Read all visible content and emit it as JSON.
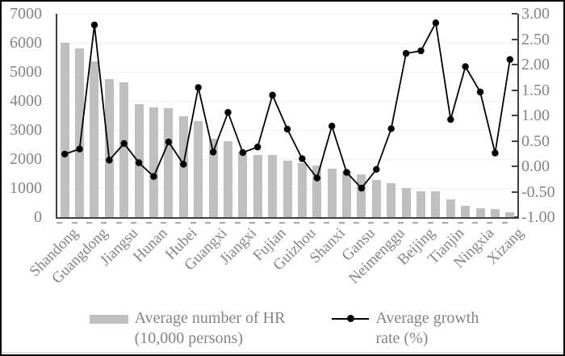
{
  "legend": {
    "bar_lines": [
      "Average number of HR",
      "(10,000 persons)"
    ],
    "line_lines": [
      "Average growth",
      "rate (%)"
    ]
  },
  "colors": {
    "bar": "#bfbfbf",
    "line": "#000000",
    "text": "#848484",
    "grid": "#f0f0f0",
    "axis": "#404040",
    "frame": "#000000"
  },
  "chart_data": {
    "type": "bar",
    "combo": "bar+line",
    "title": "",
    "categories": [
      "Shandong",
      "",
      "Guangdong",
      "",
      "Jiangsu",
      "",
      "Hunan",
      "",
      "Hubei",
      "",
      "Guangxi",
      "",
      "Jiangxi",
      "",
      "Fujian",
      "",
      "Guizhou",
      "",
      "Shanxi",
      "",
      "Gansu",
      "",
      "Neimenggu",
      "",
      "Beijing",
      "",
      "Tianjin",
      "",
      "Ningxia",
      "",
      "Xizang"
    ],
    "series": [
      {
        "name": "Average number of HR (10,000 persons)",
        "type": "bar",
        "axis": "left",
        "values": [
          6000,
          5800,
          5360,
          4760,
          4650,
          3880,
          3790,
          3760,
          3480,
          3300,
          2690,
          2600,
          2240,
          2150,
          2130,
          1950,
          1850,
          1790,
          1660,
          1570,
          1460,
          1280,
          1160,
          1000,
          900,
          900,
          620,
          400,
          300,
          280,
          160
        ]
      },
      {
        "name": "Average growth rate (%)",
        "type": "line",
        "axis": "right",
        "values": [
          0.24,
          0.34,
          2.78,
          0.12,
          0.45,
          0.07,
          -0.2,
          0.48,
          0.04,
          1.55,
          0.28,
          1.06,
          0.27,
          0.38,
          1.4,
          0.73,
          0.15,
          -0.23,
          0.79,
          -0.12,
          -0.43,
          -0.06,
          0.74,
          2.22,
          2.27,
          2.82,
          0.92,
          1.96,
          1.46,
          0.26,
          2.1
        ]
      }
    ],
    "left_axis": {
      "min": 0,
      "max": 7000,
      "step": 1000,
      "ticks": [
        "7000",
        "6000",
        "5000",
        "4000",
        "3000",
        "2000",
        "1000",
        "0"
      ]
    },
    "right_axis": {
      "min": -1,
      "max": 3,
      "step": 0.5,
      "ticks": [
        "3.00",
        "2.50",
        "2.00",
        "1.50",
        "1.00",
        "0.50",
        "0.00",
        "-0.50",
        "-1.00"
      ]
    },
    "grid": true,
    "legend_position": "bottom"
  }
}
